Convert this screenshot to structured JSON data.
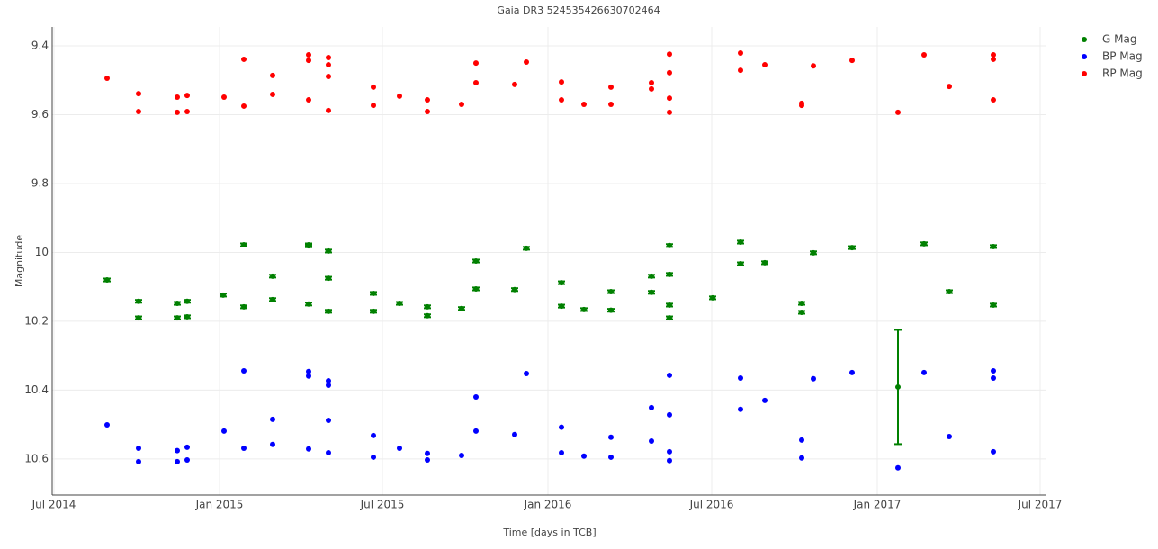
{
  "chart_data": {
    "type": "scatter",
    "title": "Gaia DR3 5245354266307024​64",
    "x_label": "Time [days in TCB]",
    "y_label": "Magnitude",
    "xlim": [
      1640,
      2745
    ],
    "ylim": [
      9.345,
      10.705
    ],
    "y_reversed": true,
    "grid": true,
    "legend": "outside-top-right",
    "xticks": [
      {
        "value": 1642,
        "label": "Jul 2014"
      },
      {
        "value": 1826,
        "label": "Jan 2015"
      },
      {
        "value": 2007,
        "label": "Jul 2015"
      },
      {
        "value": 2191,
        "label": "Jan 2016"
      },
      {
        "value": 2373,
        "label": "Jul 2016"
      },
      {
        "value": 2557,
        "label": "Jan 2017"
      },
      {
        "value": 2738,
        "label": "Jul 2017"
      }
    ],
    "yticks": [
      9.4,
      9.6,
      9.8,
      10,
      10.2,
      10.4,
      10.6
    ],
    "series": [
      {
        "name": "G Mag",
        "color": "#008000",
        "x": [
          1701,
          1736,
          1736,
          1779,
          1779,
          1790,
          1790,
          1830,
          1853,
          1853,
          1885,
          1885,
          1925,
          1925,
          1925,
          1947,
          1947,
          1947,
          1997,
          1997,
          2026,
          2057,
          2057,
          2095,
          2111,
          2111,
          2154,
          2167,
          2206,
          2206,
          2231,
          2261,
          2261,
          2306,
          2306,
          2326,
          2326,
          2326,
          2326,
          2374,
          2405,
          2405,
          2432,
          2473,
          2473,
          2486,
          2529,
          2580,
          2609,
          2637,
          2686,
          2686
        ],
        "values": [
          10.08,
          10.142,
          10.19,
          10.148,
          10.19,
          10.142,
          10.187,
          10.124,
          9.978,
          10.158,
          10.069,
          10.137,
          9.978,
          9.981,
          10.15,
          9.996,
          10.075,
          10.171,
          10.119,
          10.171,
          10.148,
          10.158,
          10.184,
          10.163,
          10.025,
          10.106,
          10.108,
          9.988,
          10.088,
          10.156,
          10.166,
          10.114,
          10.168,
          10.069,
          10.116,
          9.98,
          10.064,
          10.153,
          10.19,
          10.132,
          9.97,
          10.033,
          10.03,
          10.148,
          10.174,
          10.001,
          9.986,
          10.391,
          9.975,
          10.114,
          9.983,
          10.153
        ],
        "errors": [
          0.004,
          0.004,
          0.004,
          0.004,
          0.004,
          0.004,
          0.004,
          0.004,
          0.004,
          0.004,
          0.004,
          0.004,
          0.004,
          0.004,
          0.004,
          0.004,
          0.004,
          0.004,
          0.004,
          0.004,
          0.004,
          0.004,
          0.004,
          0.004,
          0.004,
          0.004,
          0.004,
          0.004,
          0.004,
          0.004,
          0.004,
          0.004,
          0.004,
          0.004,
          0.004,
          0.004,
          0.004,
          0.004,
          0.004,
          0.004,
          0.004,
          0.004,
          0.004,
          0.004,
          0.004,
          0.004,
          0.004,
          0.166,
          0.004,
          0.004,
          0.004,
          0.004
        ]
      },
      {
        "name": "BP Mag",
        "color": "#0000ff",
        "x": [
          1701,
          1736,
          1736,
          1779,
          1779,
          1790,
          1790,
          1831,
          1853,
          1853,
          1885,
          1885,
          1925,
          1925,
          1925,
          1947,
          1947,
          1947,
          1947,
          1997,
          1997,
          2026,
          2057,
          2057,
          2095,
          2111,
          2111,
          2154,
          2167,
          2206,
          2206,
          2231,
          2261,
          2261,
          2306,
          2306,
          2326,
          2326,
          2326,
          2326,
          2405,
          2405,
          2432,
          2473,
          2473,
          2486,
          2529,
          2580,
          2609,
          2637,
          2686,
          2686,
          2686
        ],
        "values": [
          10.501,
          10.569,
          10.608,
          10.576,
          10.608,
          10.566,
          10.603,
          10.519,
          10.344,
          10.569,
          10.485,
          10.558,
          10.346,
          10.359,
          10.571,
          10.373,
          10.386,
          10.488,
          10.582,
          10.532,
          10.595,
          10.569,
          10.584,
          10.603,
          10.59,
          10.42,
          10.519,
          10.529,
          10.352,
          10.508,
          10.582,
          10.592,
          10.537,
          10.595,
          10.451,
          10.548,
          10.357,
          10.472,
          10.579,
          10.605,
          10.365,
          10.456,
          10.43,
          10.545,
          10.597,
          10.367,
          10.349,
          10.626,
          10.349,
          10.535,
          10.344,
          10.365,
          10.579
        ]
      },
      {
        "name": "RP Mag",
        "color": "#ff0000",
        "x": [
          1701,
          1736,
          1736,
          1779,
          1779,
          1790,
          1790,
          1831,
          1853,
          1853,
          1885,
          1885,
          1925,
          1925,
          1925,
          1947,
          1947,
          1947,
          1947,
          1997,
          1997,
          2026,
          2057,
          2057,
          2095,
          2111,
          2111,
          2154,
          2167,
          2206,
          2206,
          2231,
          2261,
          2261,
          2306,
          2306,
          2326,
          2326,
          2326,
          2326,
          2405,
          2405,
          2432,
          2473,
          2473,
          2486,
          2529,
          2580,
          2609,
          2637,
          2686,
          2686,
          2686
        ],
        "values": [
          9.494,
          9.539,
          9.591,
          9.549,
          9.593,
          9.544,
          9.591,
          9.549,
          9.439,
          9.575,
          9.486,
          9.541,
          9.426,
          9.442,
          9.557,
          9.434,
          9.455,
          9.489,
          9.588,
          9.52,
          9.573,
          9.546,
          9.557,
          9.591,
          9.57,
          9.45,
          9.507,
          9.512,
          9.447,
          9.505,
          9.557,
          9.57,
          9.52,
          9.57,
          9.507,
          9.525,
          9.424,
          9.478,
          9.552,
          9.593,
          9.421,
          9.471,
          9.455,
          9.567,
          9.573,
          9.458,
          9.442,
          9.593,
          9.426,
          9.518,
          9.426,
          9.439,
          9.557
        ]
      }
    ]
  }
}
